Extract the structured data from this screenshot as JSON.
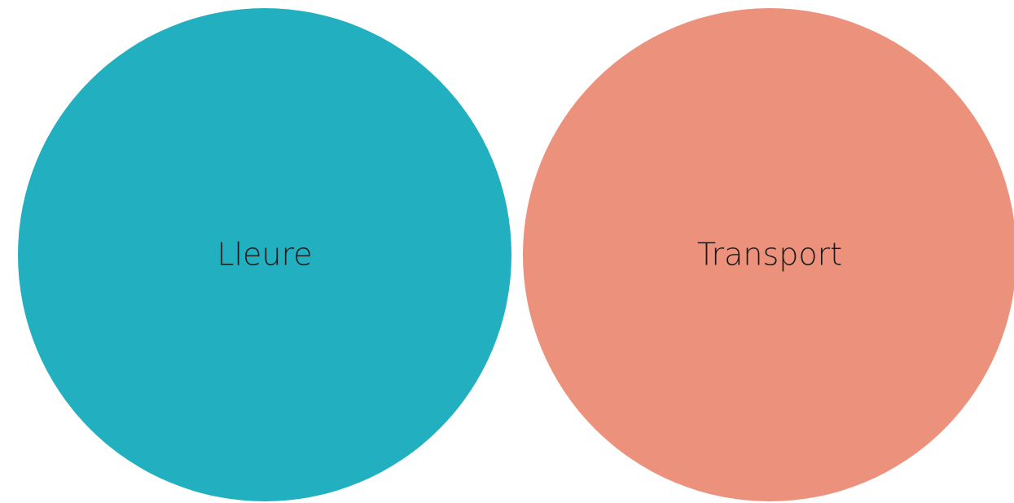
{
  "items": [
    {
      "label": "Lleure"
    },
    {
      "label": "Transport"
    }
  ]
}
